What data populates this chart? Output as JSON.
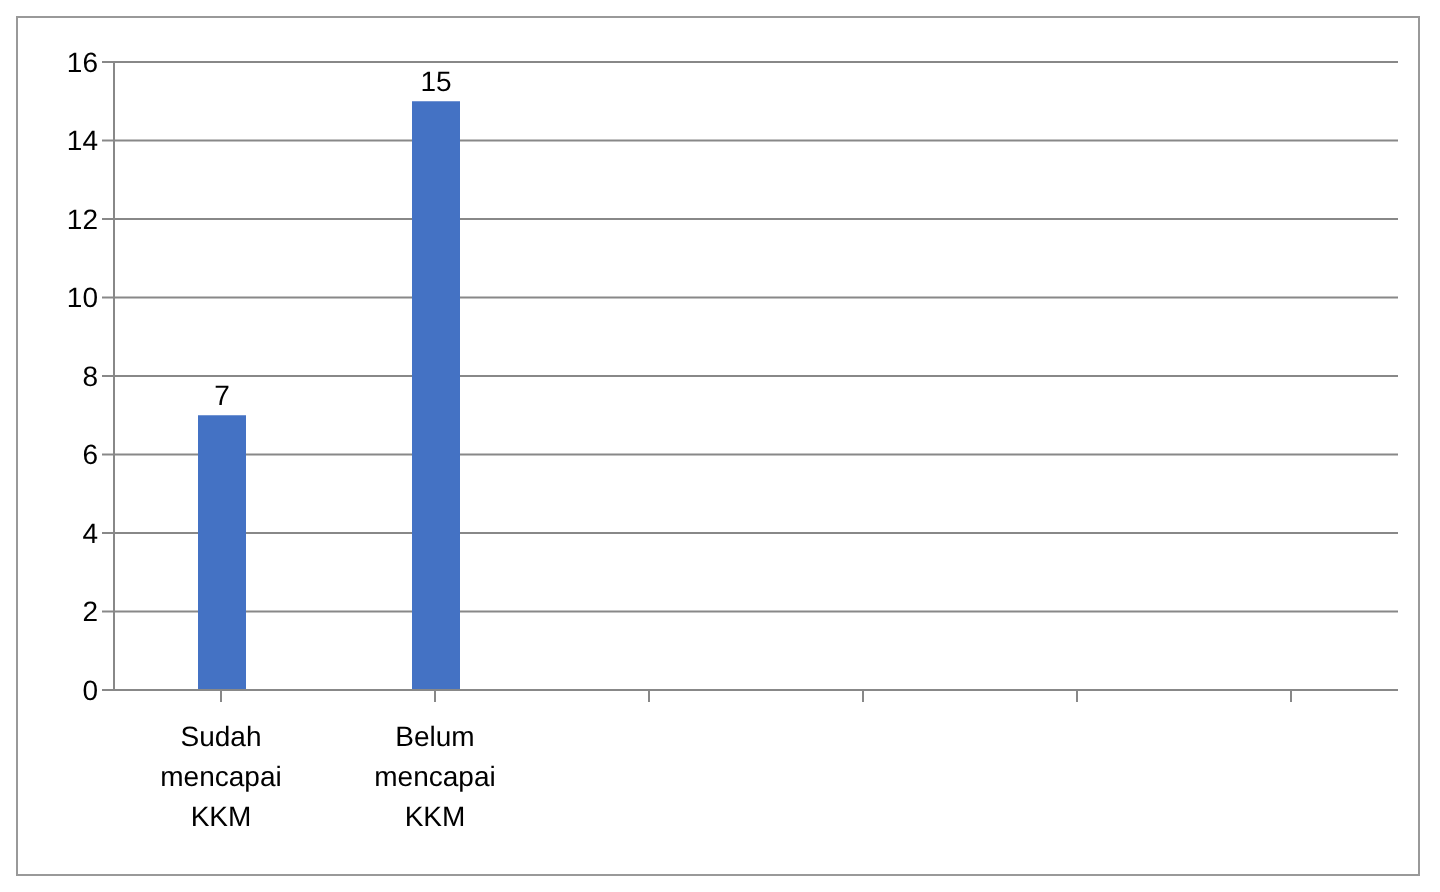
{
  "chart_data": {
    "type": "bar",
    "categories": [
      "Sudah mencapai KKM",
      "Belum mencapai KKM",
      null,
      null,
      null,
      null
    ],
    "values": [
      7,
      15,
      null,
      null,
      null,
      null
    ],
    "color": "#4472c4",
    "ylim": [
      0,
      16
    ],
    "yticks": [
      0,
      2,
      4,
      6,
      8,
      10,
      12,
      14,
      16
    ],
    "grid": "y",
    "data_labels": true
  }
}
